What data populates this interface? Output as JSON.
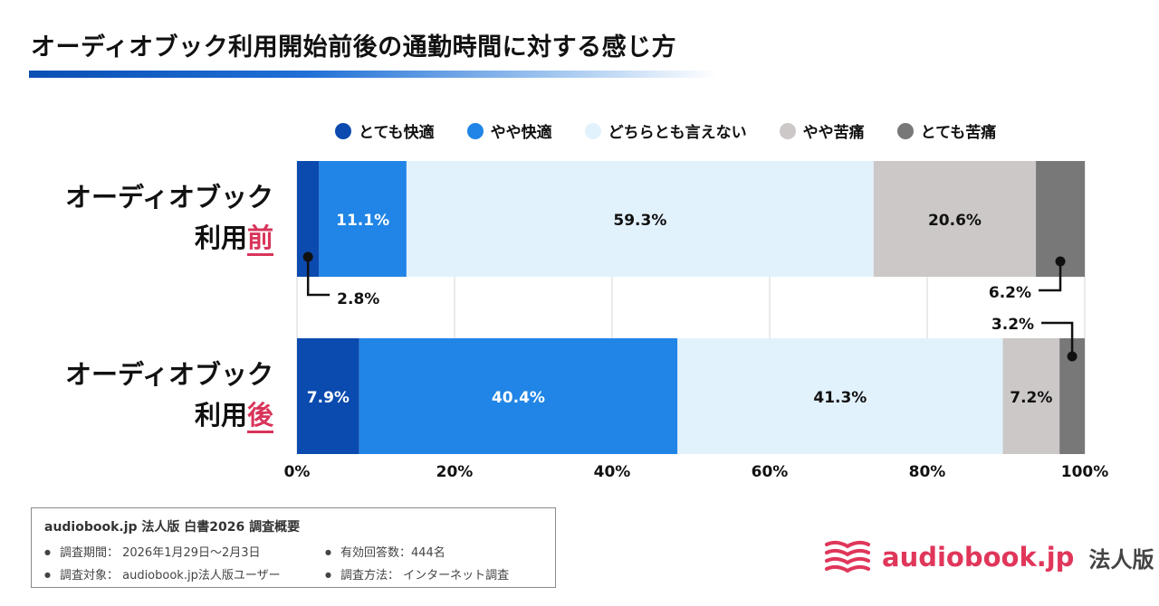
{
  "title": "オーディオブック利用開始前後の通勤時間に対する感じ方",
  "legend": [
    {
      "label": "とても快適",
      "color": "#0b4aae"
    },
    {
      "label": "やや快適",
      "color": "#2085e6"
    },
    {
      "label": "どちらとも言えない",
      "color": "#e2f2fd"
    },
    {
      "label": "やや苦痛",
      "color": "#cbc8c7"
    },
    {
      "label": "とても苦痛",
      "color": "#787878"
    }
  ],
  "rows": [
    {
      "label_line1": "オーディオブック",
      "label_line2_pre": "利用",
      "label_line2_hl": "前"
    },
    {
      "label_line1": "オーディオブック",
      "label_line2_pre": "利用",
      "label_line2_hl": "後"
    }
  ],
  "chart_data": {
    "type": "bar",
    "orientation": "horizontal",
    "stacked": true,
    "categories": [
      "オーディオブック利用前",
      "オーディオブック利用後"
    ],
    "series": [
      {
        "name": "とても快適",
        "values": [
          2.8,
          7.9
        ],
        "labels": [
          "2.8%",
          "7.9%"
        ]
      },
      {
        "name": "やや快適",
        "values": [
          11.1,
          40.4
        ],
        "labels": [
          "11.1%",
          "40.4%"
        ]
      },
      {
        "name": "どちらとも言えない",
        "values": [
          59.3,
          41.3
        ],
        "labels": [
          "59.3%",
          "41.3%"
        ]
      },
      {
        "name": "やや苦痛",
        "values": [
          20.6,
          7.2
        ],
        "labels": [
          "20.6%",
          "7.2%"
        ]
      },
      {
        "name": "とても苦痛",
        "values": [
          6.2,
          3.2
        ],
        "labels": [
          "6.2%",
          "3.2%"
        ]
      }
    ],
    "xlim": [
      0,
      100
    ],
    "xticks": [
      "0%",
      "20%",
      "40%",
      "60%",
      "80%",
      "100%"
    ],
    "grid": true,
    "legend_position": "top"
  },
  "survey": {
    "title": "audiobook.jp 法人版 白書2026 調査概要",
    "items": [
      "調査期間： 2026年1月29日〜2月3日",
      "有効回答数：444名",
      "調査対象： audiobook.jp法人版ユーザー",
      "調査方法： インターネット調査"
    ]
  },
  "brand": {
    "name": "audiobook.jp",
    "sub": "法人版",
    "icon": "open-book-icon",
    "color": "#e0365a"
  }
}
